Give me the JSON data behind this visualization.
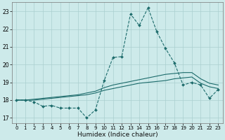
{
  "xlabel": "Humidex (Indice chaleur)",
  "xlim": [
    -0.5,
    23.5
  ],
  "ylim": [
    16.7,
    23.5
  ],
  "yticks": [
    17,
    18,
    19,
    20,
    21,
    22,
    23
  ],
  "xticks": [
    0,
    1,
    2,
    3,
    4,
    5,
    6,
    7,
    8,
    9,
    10,
    11,
    12,
    13,
    14,
    15,
    16,
    17,
    18,
    19,
    20,
    21,
    22,
    23
  ],
  "background_color": "#cdeaea",
  "grid_color": "#aacfcf",
  "line_color": "#1c6b6b",
  "line1_x": [
    0,
    1,
    2,
    3,
    4,
    5,
    6,
    7,
    8,
    9,
    10,
    11,
    12,
    13,
    14,
    15,
    16,
    17,
    18,
    19,
    20,
    21,
    22,
    23
  ],
  "line1_y": [
    18.0,
    18.0,
    17.9,
    17.65,
    17.7,
    17.55,
    17.55,
    17.55,
    17.0,
    17.45,
    19.1,
    20.4,
    20.45,
    22.85,
    22.2,
    23.2,
    21.85,
    20.9,
    20.1,
    18.85,
    19.0,
    18.85,
    18.1,
    18.6
  ],
  "line2_x": [
    0,
    1,
    2,
    3,
    4,
    5,
    6,
    7,
    8,
    9,
    10,
    11,
    12,
    13,
    14,
    15,
    16,
    17,
    18,
    19,
    20,
    21,
    22,
    23
  ],
  "line2_y": [
    18.0,
    18.0,
    18.0,
    18.05,
    18.1,
    18.15,
    18.2,
    18.25,
    18.3,
    18.4,
    18.55,
    18.65,
    18.75,
    18.85,
    18.95,
    19.0,
    19.05,
    19.1,
    19.2,
    19.25,
    19.3,
    18.95,
    18.75,
    18.65
  ],
  "line3_x": [
    0,
    1,
    2,
    3,
    4,
    5,
    6,
    7,
    8,
    9,
    10,
    11,
    12,
    13,
    14,
    15,
    16,
    17,
    18,
    19,
    20,
    21,
    22,
    23
  ],
  "line3_y": [
    18.0,
    18.0,
    18.05,
    18.1,
    18.15,
    18.2,
    18.25,
    18.3,
    18.4,
    18.5,
    18.7,
    18.85,
    18.95,
    19.05,
    19.15,
    19.25,
    19.35,
    19.45,
    19.5,
    19.55,
    19.55,
    19.2,
    18.95,
    18.85
  ]
}
